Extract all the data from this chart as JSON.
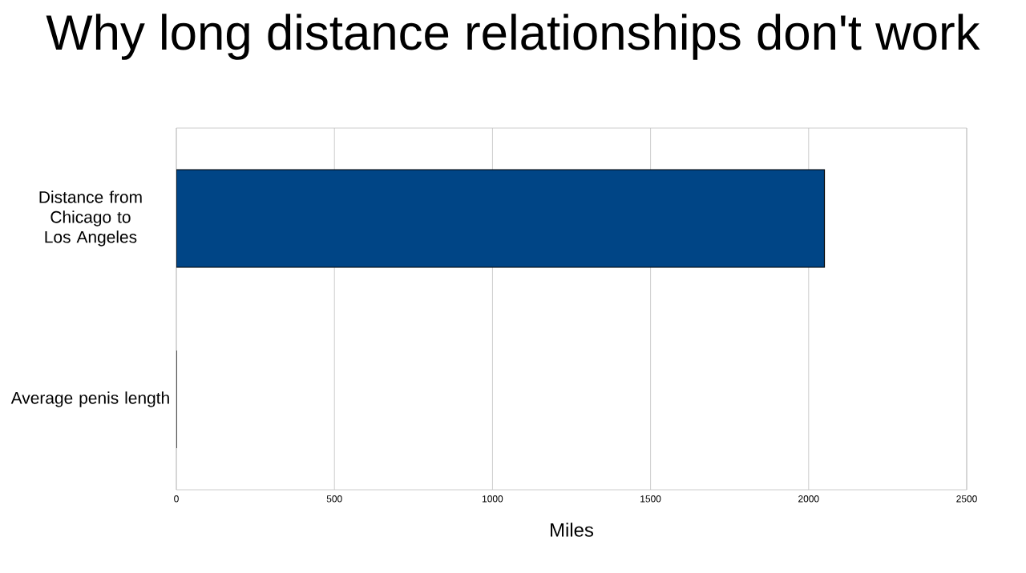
{
  "chart_data": {
    "type": "bar",
    "orientation": "horizontal",
    "title": "Why long distance relationships don't work",
    "xlabel": "Miles",
    "categories": [
      "Distance from Chicago to Los Angeles",
      "Average penis length"
    ],
    "values": [
      2050,
      0
    ],
    "color": "#004586",
    "xlim": [
      0,
      2500
    ],
    "xticks": [
      0,
      500,
      1000,
      1500,
      2000,
      2500
    ],
    "grid": "x"
  }
}
